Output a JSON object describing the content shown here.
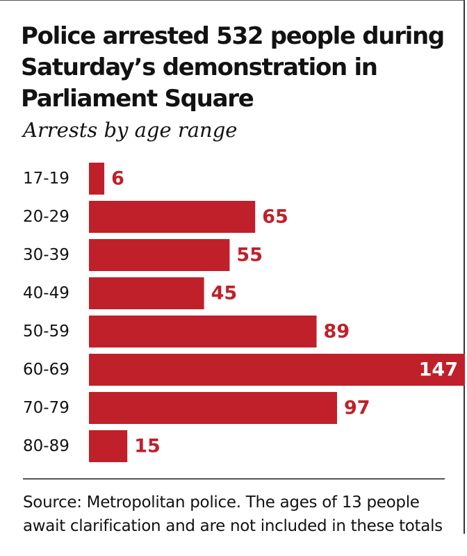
{
  "header": {
    "title": "Police arrested 532 people during Saturday’s demonstration in Parliament Square",
    "subtitle": "Arrests by age range"
  },
  "footer": {
    "source": "Source: Metropolitan police. The ages of 13 people await clarification and are not included in these totals"
  },
  "colors": {
    "bar": "#c0202a",
    "label_outside": "#c0202a",
    "label_inside": "#ffffff",
    "text": "#121212"
  },
  "chart_data": {
    "type": "bar",
    "orientation": "horizontal",
    "title": "Police arrested 532 people during Saturday’s demonstration in Parliament Square",
    "subtitle": "Arrests by age range",
    "xlabel": "",
    "ylabel": "",
    "categories": [
      "17-19",
      "20-29",
      "30-39",
      "40-49",
      "50-59",
      "60-69",
      "70-79",
      "80-89"
    ],
    "values": [
      6,
      65,
      55,
      45,
      89,
      147,
      97,
      15
    ],
    "xlim": [
      0,
      147
    ],
    "grid": false,
    "legend": "none"
  }
}
